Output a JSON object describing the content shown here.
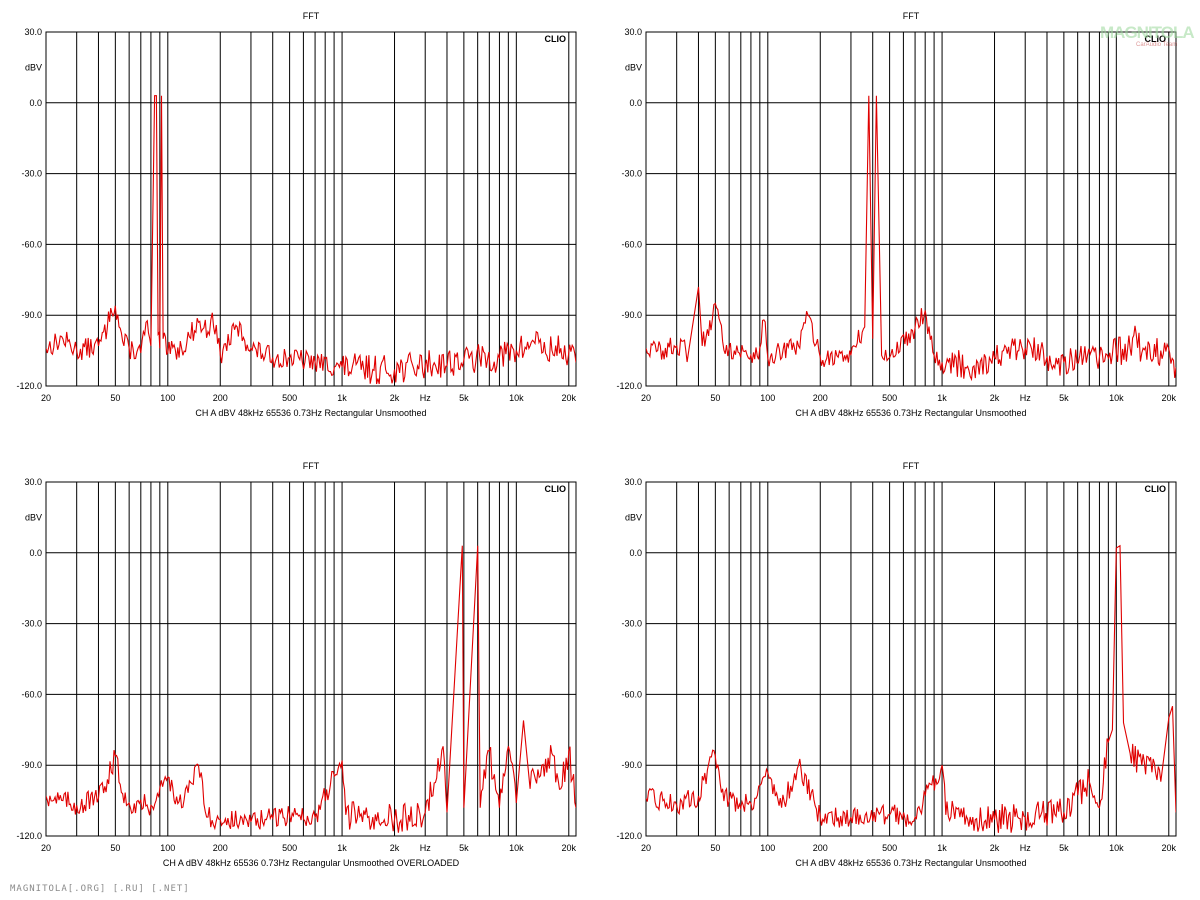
{
  "footer": "MAGNITOLA[.ORG] [.RU] [.NET]",
  "watermark": "MAGNITOLA",
  "watermark_sub": "CarAudio Team",
  "colors": {
    "trace": "#e00000",
    "grid": "#000000",
    "background": "#ffffff"
  },
  "chart_data": [
    {
      "type": "line",
      "title": "FFT",
      "ylabel": "dBV",
      "ylim": [
        -120,
        30
      ],
      "yticks": [
        "30.0",
        "0.0",
        "-30.0",
        "-60.0",
        "-90.0",
        "-120.0"
      ],
      "xscale": "log",
      "xlim": [
        20,
        22000
      ],
      "xticks": [
        "20",
        "50",
        "100",
        "200",
        "500",
        "1k",
        "Hz",
        "2k",
        "5k",
        "10k",
        "20k"
      ],
      "brand": "CLIO",
      "info": "CH A   dBV   48kHz   65536   0.73Hz   Rectangular   Unsmoothed",
      "series": [
        {
          "points": [
            [
              20,
              -104
            ],
            [
              25,
              -100
            ],
            [
              30,
              -105
            ],
            [
              40,
              -103
            ],
            [
              45,
              -95
            ],
            [
              47,
              -87
            ],
            [
              50,
              -86
            ],
            [
              55,
              -101
            ],
            [
              60,
              -104
            ],
            [
              70,
              -106
            ],
            [
              75,
              -93
            ],
            [
              80,
              -103
            ],
            [
              84,
              3
            ],
            [
              86,
              3
            ],
            [
              88,
              -98
            ],
            [
              90,
              -104
            ],
            [
              92,
              3
            ],
            [
              94,
              -100
            ],
            [
              100,
              -106
            ],
            [
              120,
              -104
            ],
            [
              150,
              -93
            ],
            [
              170,
              -97
            ],
            [
              180,
              -89
            ],
            [
              200,
              -107
            ],
            [
              250,
              -95
            ],
            [
              300,
              -104
            ],
            [
              400,
              -108
            ],
            [
              500,
              -108
            ],
            [
              700,
              -110
            ],
            [
              1000,
              -112
            ],
            [
              1500,
              -113
            ],
            [
              2000,
              -113
            ],
            [
              3000,
              -111
            ],
            [
              5000,
              -109
            ],
            [
              8000,
              -108
            ],
            [
              10000,
              -105
            ],
            [
              12000,
              -103
            ],
            [
              13000,
              -97
            ],
            [
              14000,
              -106
            ],
            [
              18000,
              -104
            ],
            [
              22000,
              -110
            ]
          ]
        }
      ]
    },
    {
      "type": "line",
      "title": "FFT",
      "ylabel": "dBV",
      "ylim": [
        -120,
        30
      ],
      "yticks": [
        "30.0",
        "0.0",
        "-30.0",
        "-60.0",
        "-90.0",
        "-120.0"
      ],
      "xscale": "log",
      "xlim": [
        20,
        22000
      ],
      "xticks": [
        "20",
        "50",
        "100",
        "200",
        "500",
        "1k",
        "Hz",
        "2k",
        "5k",
        "10k",
        "20k"
      ],
      "brand": "CLIO",
      "info": "CH A   dBV   48kHz   65536   0.73Hz   Rectangular   Unsmoothed",
      "series": [
        {
          "points": [
            [
              20,
              -104
            ],
            [
              25,
              -105
            ],
            [
              30,
              -103
            ],
            [
              35,
              -106
            ],
            [
              40,
              -78
            ],
            [
              42,
              -103
            ],
            [
              45,
              -96
            ],
            [
              48,
              -92
            ],
            [
              50,
              -85
            ],
            [
              55,
              -101
            ],
            [
              60,
              -104
            ],
            [
              80,
              -107
            ],
            [
              90,
              -104
            ],
            [
              95,
              -92
            ],
            [
              100,
              -108
            ],
            [
              150,
              -103
            ],
            [
              170,
              -90
            ],
            [
              200,
              -108
            ],
            [
              300,
              -107
            ],
            [
              360,
              -95
            ],
            [
              380,
              3
            ],
            [
              400,
              -100
            ],
            [
              420,
              3
            ],
            [
              450,
              -107
            ],
            [
              500,
              -108
            ],
            [
              700,
              -95
            ],
            [
              800,
              -88
            ],
            [
              900,
              -107
            ],
            [
              1000,
              -110
            ],
            [
              1500,
              -112
            ],
            [
              2000,
              -108
            ],
            [
              3000,
              -104
            ],
            [
              5000,
              -110
            ],
            [
              8000,
              -108
            ],
            [
              10000,
              -106
            ],
            [
              12000,
              -104
            ],
            [
              13000,
              -98
            ],
            [
              14000,
              -106
            ],
            [
              18000,
              -105
            ],
            [
              22000,
              -112
            ]
          ]
        }
      ]
    },
    {
      "type": "line",
      "title": "FFT",
      "ylabel": "dBV",
      "ylim": [
        -120,
        30
      ],
      "yticks": [
        "30.0",
        "0.0",
        "-30.0",
        "-60.0",
        "-90.0",
        "-120.0"
      ],
      "xscale": "log",
      "xlim": [
        20,
        22000
      ],
      "xticks": [
        "20",
        "50",
        "100",
        "200",
        "500",
        "1k",
        "Hz",
        "2k",
        "5k",
        "10k",
        "20k"
      ],
      "brand": "CLIO",
      "info": "CH A   dBV   48kHz   65536   0.73Hz   Rectangular   Unsmoothed   OVERLOADED",
      "series": [
        {
          "points": [
            [
              20,
              -103
            ],
            [
              25,
              -105
            ],
            [
              30,
              -107
            ],
            [
              40,
              -104
            ],
            [
              45,
              -96
            ],
            [
              50,
              -86
            ],
            [
              55,
              -102
            ],
            [
              60,
              -106
            ],
            [
              80,
              -107
            ],
            [
              100,
              -95
            ],
            [
              120,
              -108
            ],
            [
              150,
              -90
            ],
            [
              170,
              -112
            ],
            [
              200,
              -113
            ],
            [
              300,
              -114
            ],
            [
              500,
              -111
            ],
            [
              700,
              -112
            ],
            [
              1000,
              -88
            ],
            [
              1050,
              -111
            ],
            [
              1500,
              -112
            ],
            [
              2000,
              -113
            ],
            [
              3000,
              -110
            ],
            [
              3800,
              -82
            ],
            [
              4000,
              -110
            ],
            [
              4900,
              3
            ],
            [
              5000,
              -108
            ],
            [
              6000,
              3
            ],
            [
              6200,
              -108
            ],
            [
              7000,
              -84
            ],
            [
              8000,
              -108
            ],
            [
              9000,
              -82
            ],
            [
              10000,
              -106
            ],
            [
              11000,
              -71
            ],
            [
              12000,
              -100
            ],
            [
              14000,
              -90
            ],
            [
              16000,
              -85
            ],
            [
              18000,
              -100
            ],
            [
              20000,
              -84
            ],
            [
              22000,
              -108
            ]
          ]
        }
      ]
    },
    {
      "type": "line",
      "title": "FFT",
      "ylabel": "dBV",
      "ylim": [
        -120,
        30
      ],
      "yticks": [
        "30.0",
        "0.0",
        "-30.0",
        "-60.0",
        "-90.0",
        "-120.0"
      ],
      "xscale": "log",
      "xlim": [
        20,
        22000
      ],
      "xticks": [
        "20",
        "50",
        "100",
        "200",
        "500",
        "1k",
        "Hz",
        "2k",
        "5k",
        "10k",
        "20k"
      ],
      "brand": "CLIO",
      "info": "CH A   dBV   48kHz   65536   0.73Hz   Rectangular   Unsmoothed",
      "series": [
        {
          "points": [
            [
              20,
              -104
            ],
            [
              25,
              -105
            ],
            [
              30,
              -107
            ],
            [
              40,
              -103
            ],
            [
              45,
              -92
            ],
            [
              50,
              -86
            ],
            [
              55,
              -100
            ],
            [
              60,
              -105
            ],
            [
              80,
              -106
            ],
            [
              100,
              -93
            ],
            [
              120,
              -108
            ],
            [
              150,
              -90
            ],
            [
              200,
              -112
            ],
            [
              300,
              -112
            ],
            [
              500,
              -111
            ],
            [
              700,
              -112
            ],
            [
              1000,
              -90
            ],
            [
              1050,
              -111
            ],
            [
              1500,
              -112
            ],
            [
              2000,
              -113
            ],
            [
              3000,
              -112
            ],
            [
              5000,
              -110
            ],
            [
              7000,
              -97
            ],
            [
              8000,
              -108
            ],
            [
              9000,
              -80
            ],
            [
              9500,
              -75
            ],
            [
              10000,
              2
            ],
            [
              10500,
              3
            ],
            [
              11000,
              -72
            ],
            [
              12000,
              -85
            ],
            [
              14000,
              -90
            ],
            [
              16000,
              -93
            ],
            [
              18000,
              -97
            ],
            [
              20000,
              -70
            ],
            [
              21000,
              -65
            ],
            [
              22000,
              -110
            ]
          ]
        }
      ]
    }
  ]
}
